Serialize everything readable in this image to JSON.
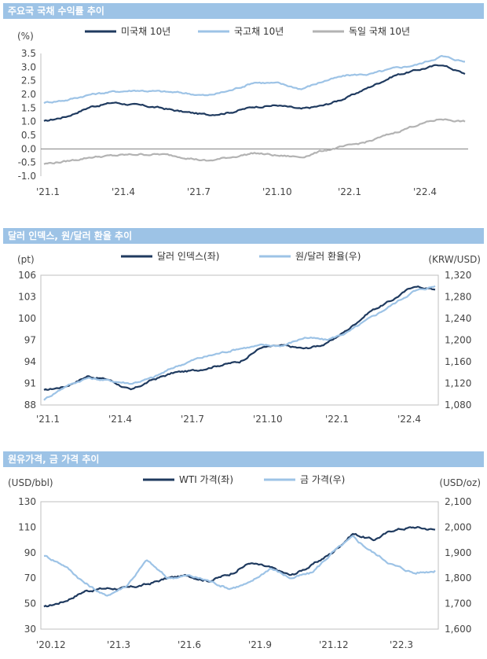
{
  "chart_data": [
    {
      "type": "line",
      "title": "주요국 국채 수익률 추이",
      "ylabel": "(%)",
      "ylim": [
        -1.0,
        3.5
      ],
      "yticks": [
        "3.5",
        "3.0",
        "2.5",
        "2.0",
        "1.5",
        "1.0",
        "0.5",
        "0.0",
        "-0.5",
        "-1.0"
      ],
      "xticks": [
        "'21.1",
        "'21.4",
        "'21.7",
        "'21.10",
        "'22.1",
        "'22.4"
      ],
      "legend": "top",
      "grid": false,
      "x": [
        "2021-01",
        "2021-02",
        "2021-03",
        "2021-04",
        "2021-05",
        "2021-06",
        "2021-07",
        "2021-08",
        "2021-09",
        "2021-10",
        "2021-11",
        "2021-12",
        "2022-01",
        "2022-02",
        "2022-03",
        "2022-04",
        "2022-05",
        "2022-06",
        "2022-07"
      ],
      "series": [
        {
          "name": "미국채 10년",
          "color": "#1f3a5f",
          "values": [
            1.0,
            1.2,
            1.55,
            1.7,
            1.6,
            1.5,
            1.35,
            1.25,
            1.35,
            1.55,
            1.6,
            1.45,
            1.6,
            1.9,
            2.3,
            2.7,
            2.9,
            3.1,
            2.75
          ]
        },
        {
          "name": "국고채 10년",
          "color": "#9dc3e6",
          "values": [
            1.7,
            1.8,
            2.0,
            2.1,
            2.15,
            2.1,
            2.05,
            1.95,
            2.15,
            2.45,
            2.4,
            2.2,
            2.5,
            2.7,
            2.75,
            2.95,
            3.1,
            3.4,
            3.2
          ]
        },
        {
          "name": "독일 국채 10년",
          "color": "#b3b3b3",
          "values": [
            -0.55,
            -0.45,
            -0.3,
            -0.25,
            -0.2,
            -0.2,
            -0.3,
            -0.45,
            -0.3,
            -0.15,
            -0.25,
            -0.3,
            -0.05,
            0.1,
            0.3,
            0.6,
            0.9,
            1.1,
            1.0
          ]
        }
      ]
    },
    {
      "type": "line",
      "title": "달러 인덱스, 원/달러 환율 추이",
      "ylabel": "(pt)",
      "ylabel_right": "(KRW/USD)",
      "ylim": [
        88,
        106
      ],
      "ylim_right": [
        1080,
        1320
      ],
      "yticks": [
        "106",
        "103",
        "100",
        "97",
        "94",
        "91",
        "88"
      ],
      "yticks_right": [
        "1,320",
        "1,280",
        "1,240",
        "1,200",
        "1,160",
        "1,120",
        "1,080"
      ],
      "xticks": [
        "'21.1",
        "'21.4",
        "'21.7",
        "'21.10",
        "'22.1",
        "'22.4"
      ],
      "legend": "top",
      "grid": false,
      "x": [
        "2021-01",
        "2021-02",
        "2021-03",
        "2021-04",
        "2021-05",
        "2021-06",
        "2021-07",
        "2021-08",
        "2021-09",
        "2021-10",
        "2021-11",
        "2021-12",
        "2022-01",
        "2022-02",
        "2022-03",
        "2022-04",
        "2022-05",
        "2022-06",
        "2022-07"
      ],
      "series": [
        {
          "name": "달러 인덱스(좌)",
          "axis": "left",
          "color": "#1f3a5f",
          "values": [
            90.0,
            90.6,
            92.0,
            91.5,
            90.0,
            91.5,
            92.5,
            92.8,
            93.5,
            94.0,
            96.0,
            96.2,
            95.8,
            96.5,
            98.5,
            101.0,
            102.5,
            104.5,
            104.0
          ]
        },
        {
          "name": "원/달러 환율(우)",
          "axis": "right",
          "color": "#9dc3e6",
          "values": [
            1090,
            1115,
            1130,
            1125,
            1120,
            1130,
            1150,
            1165,
            1175,
            1185,
            1190,
            1190,
            1205,
            1200,
            1215,
            1240,
            1265,
            1290,
            1300
          ]
        }
      ]
    },
    {
      "type": "line",
      "title": "원유가격, 금 가격 추이",
      "ylabel": "(USD/bbl)",
      "ylabel_right": "(USD/oz)",
      "ylim": [
        30,
        130
      ],
      "ylim_right": [
        1600,
        2100
      ],
      "yticks": [
        "130",
        "110",
        "90",
        "70",
        "50",
        "30"
      ],
      "yticks_right": [
        "2,100",
        "2,000",
        "1,900",
        "1,800",
        "1,700",
        "1,600"
      ],
      "xticks": [
        "'20.12",
        "'21.3",
        "'21.6",
        "'21.9",
        "'21.12",
        "'22.3"
      ],
      "legend": "top",
      "grid": false,
      "x": [
        "2020-12",
        "2021-01",
        "2021-02",
        "2021-03",
        "2021-04",
        "2021-05",
        "2021-06",
        "2021-07",
        "2021-08",
        "2021-09",
        "2021-10",
        "2021-11",
        "2021-12",
        "2022-01",
        "2022-02",
        "2022-03",
        "2022-04",
        "2022-05",
        "2022-06",
        "2022-07"
      ],
      "series": [
        {
          "name": "WTI 가격(좌)",
          "axis": "left",
          "color": "#1f3a5f",
          "values": [
            47,
            52,
            60,
            62,
            62,
            65,
            70,
            72,
            68,
            73,
            82,
            78,
            72,
            80,
            90,
            105,
            100,
            108,
            110,
            108
          ]
        },
        {
          "name": "금 가격(우)",
          "axis": "right",
          "color": "#9dc3e6",
          "values": [
            1890,
            1850,
            1780,
            1730,
            1770,
            1870,
            1800,
            1810,
            1790,
            1760,
            1780,
            1840,
            1800,
            1820,
            1900,
            1960,
            1900,
            1850,
            1820,
            1830
          ]
        }
      ]
    }
  ]
}
